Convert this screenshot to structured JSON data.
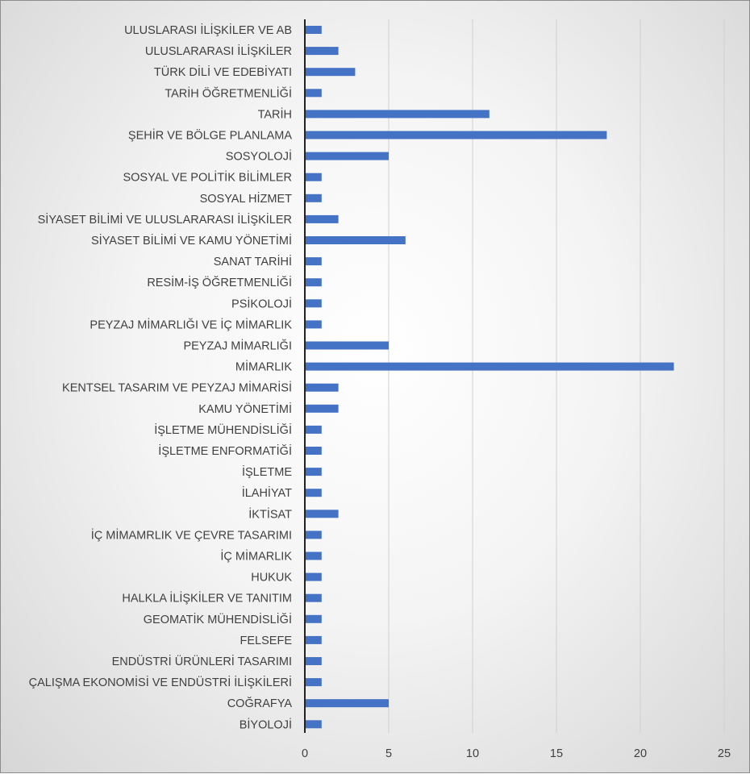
{
  "chart_data": {
    "type": "bar",
    "orientation": "horizontal",
    "title": "",
    "xlabel": "",
    "ylabel": "",
    "xlim": [
      0,
      25
    ],
    "x_ticks": [
      0,
      5,
      10,
      15,
      20,
      25
    ],
    "grid": true,
    "legend": "none",
    "bar_color": "#4472c4",
    "categories": [
      "ULUSLARASI İLİŞKİLER VE AB",
      "ULUSLARARASI İLİŞKİLER",
      "TÜRK DİLİ VE EDEBİYATI",
      "TARİH ÖĞRETMENLİĞİ",
      "TARİH",
      "ŞEHİR VE BÖLGE PLANLAMA",
      "SOSYOLOJİ",
      "SOSYAL VE POLİTİK BİLİMLER",
      "SOSYAL HİZMET",
      "SİYASET BİLİMİ VE ULUSLARARASI İLİŞKİLER",
      "SİYASET BİLİMİ VE KAMU YÖNETİMİ",
      "SANAT TARİHİ",
      "RESİM-İŞ ÖĞRETMENLİĞİ",
      "PSİKOLOJİ",
      "PEYZAJ MİMARLIĞI VE İÇ MİMARLIK",
      "PEYZAJ MİMARLIĞI",
      "MİMARLIK",
      "KENTSEL TASARIM VE PEYZAJ MİMARİSİ",
      "KAMU YÖNETİMİ",
      "İŞLETME MÜHENDİSLİĞİ",
      "İŞLETME ENFORMATİĞİ",
      "İŞLETME",
      "İLAHİYAT",
      "İKTİSAT",
      "İÇ MİMAMRLIK VE ÇEVRE TASARIMI",
      "İÇ MİMARLIK",
      "HUKUK",
      "HALKLA İLİŞKİLER VE TANITIM",
      "GEOMATİK MÜHENDİSLİĞİ",
      "FELSEFE",
      "ENDÜSTRİ ÜRÜNLERİ TASARIMI",
      "ÇALIŞMA EKONOMİSİ VE ENDÜSTRİ İLİŞKİLERİ",
      "COĞRAFYA",
      "BİYOLOJİ"
    ],
    "values": [
      1,
      2,
      3,
      1,
      11,
      18,
      5,
      1,
      1,
      2,
      6,
      1,
      1,
      1,
      1,
      5,
      22,
      2,
      2,
      1,
      1,
      1,
      1,
      2,
      1,
      1,
      1,
      1,
      1,
      1,
      1,
      1,
      5,
      1
    ]
  }
}
